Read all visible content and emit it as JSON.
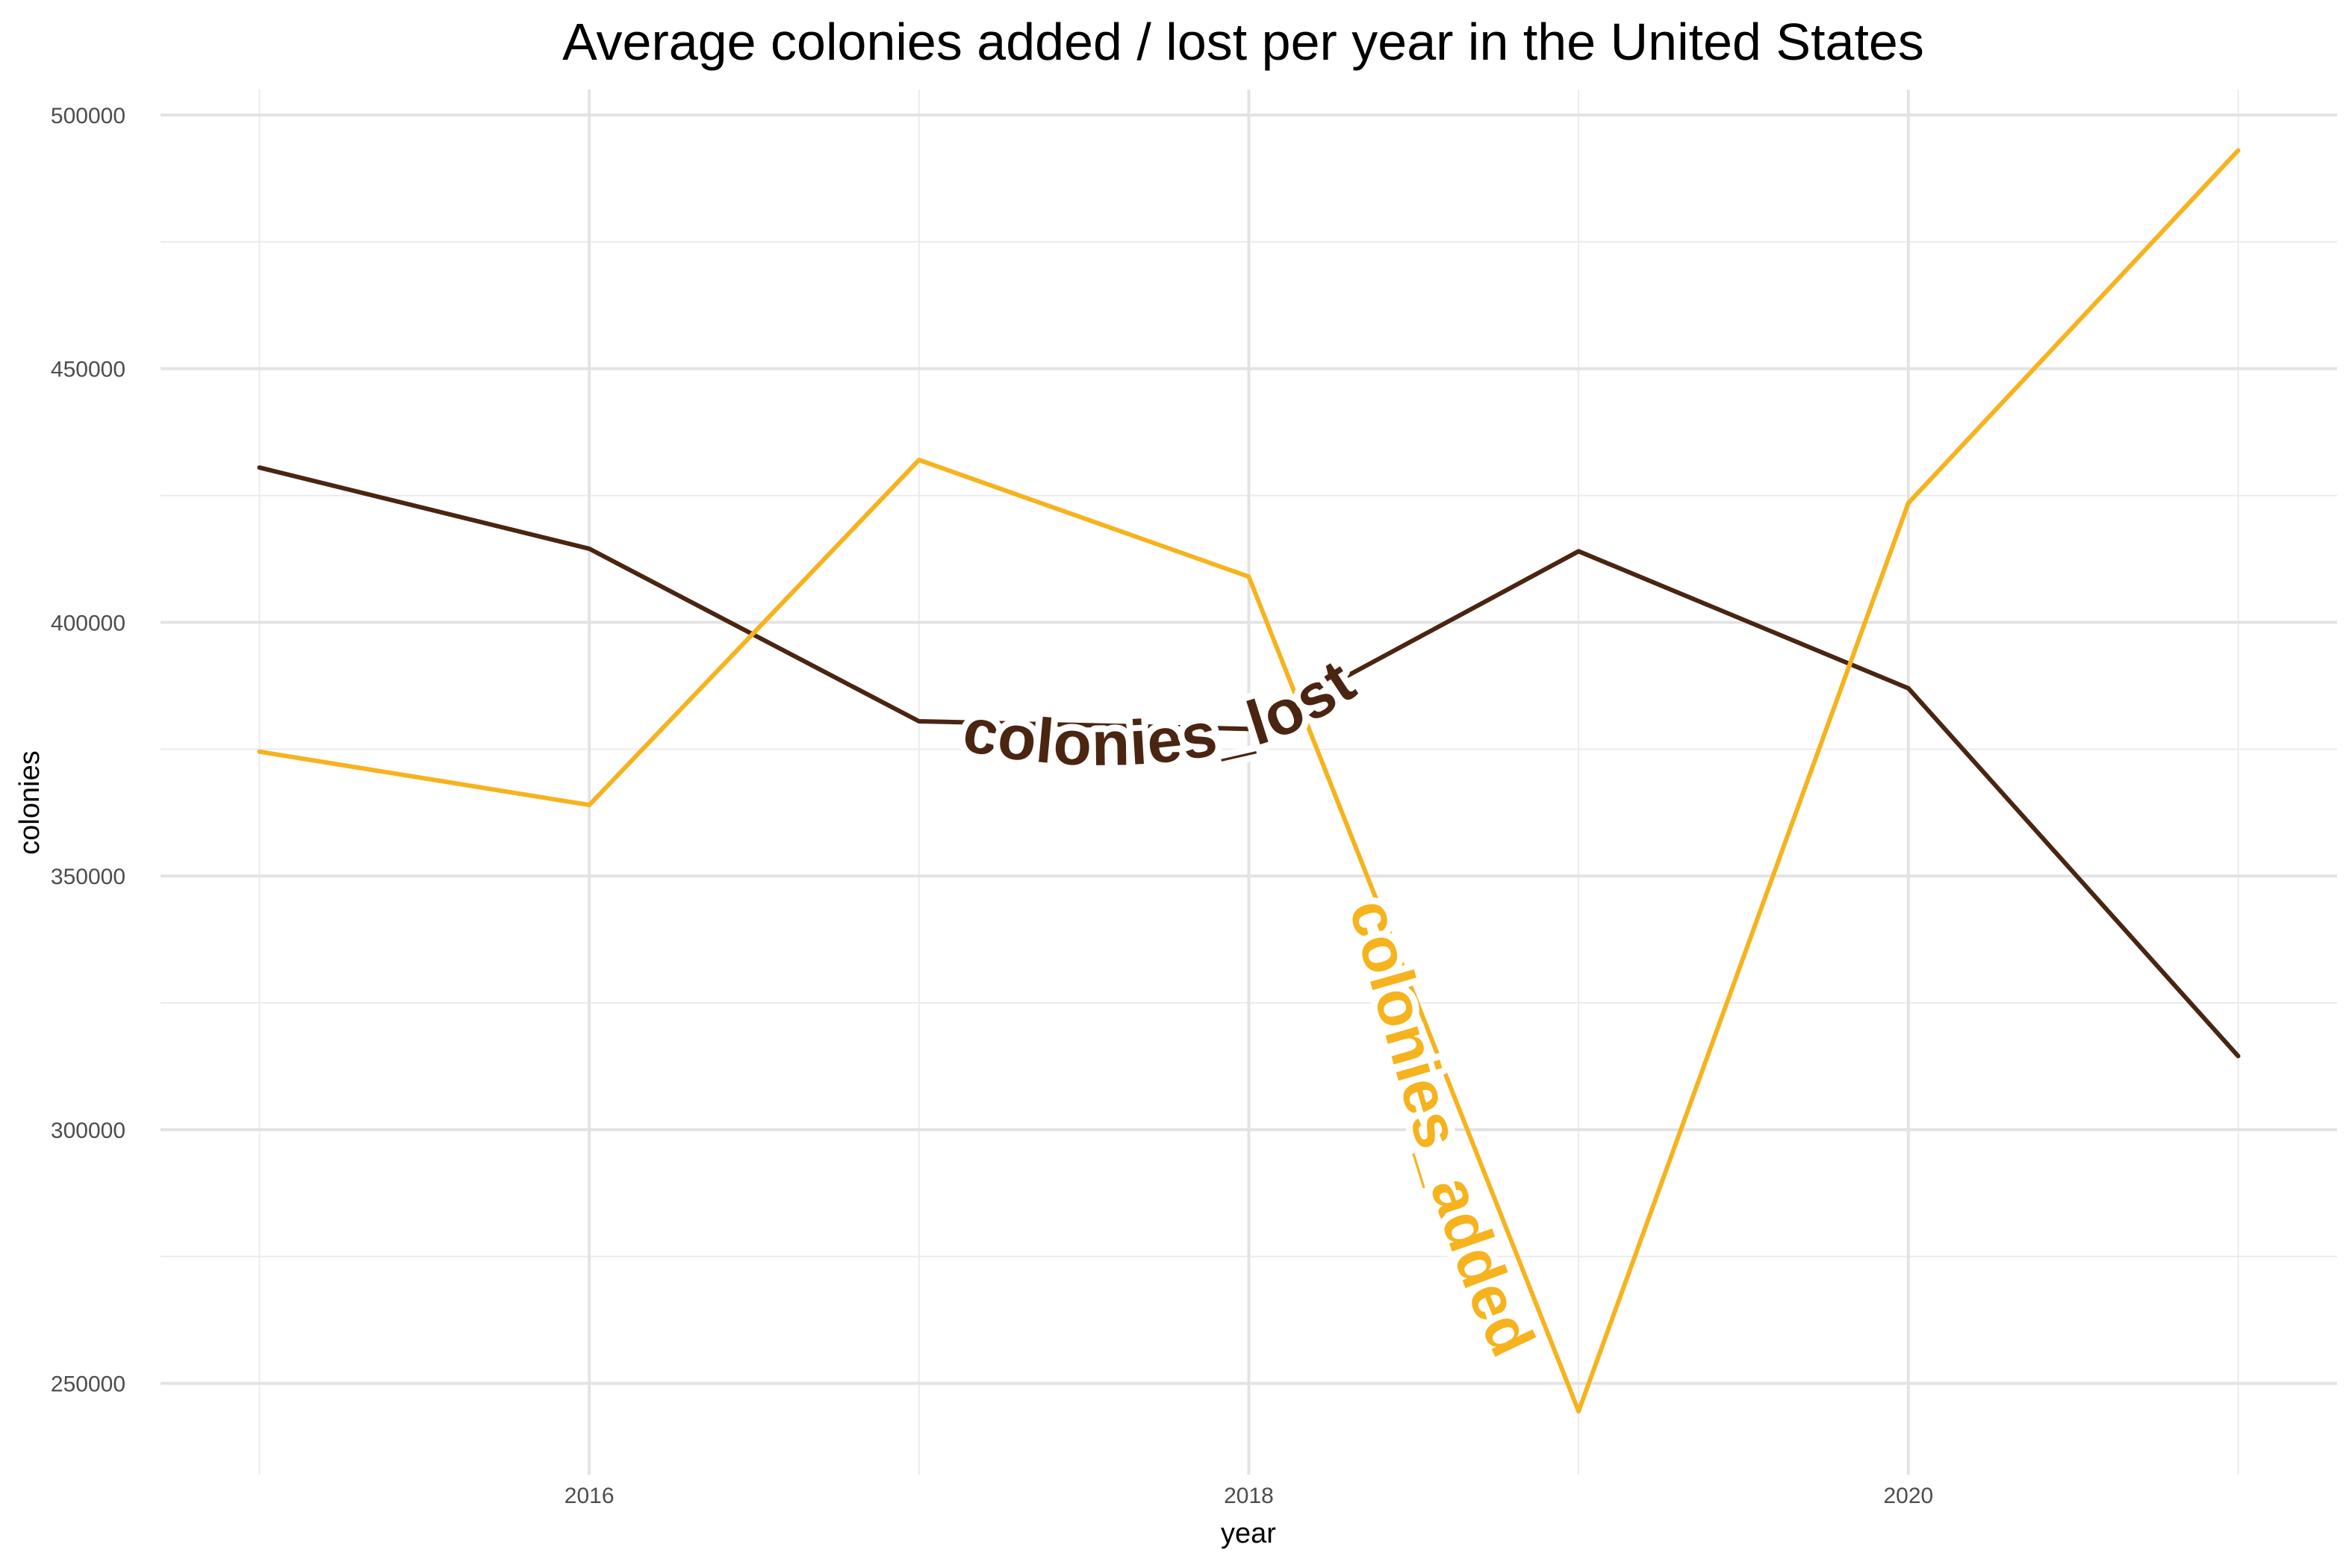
{
  "chart_data": {
    "type": "line",
    "title": "Average colonies added / lost per year in the United States",
    "xlabel": "year",
    "ylabel": "colonies",
    "x": [
      2015,
      2016,
      2017,
      2018,
      2019,
      2020,
      2021
    ],
    "xlim": [
      2014.7,
      2021.3
    ],
    "ylim": [
      232000,
      505000
    ],
    "x_ticks": [
      2016,
      2018,
      2020
    ],
    "y_ticks": [
      250000,
      300000,
      350000,
      400000,
      450000,
      500000
    ],
    "x_tick_labels": [
      "2016",
      "2018",
      "2020"
    ],
    "y_tick_labels": [
      "250000",
      "300000",
      "350000",
      "400000",
      "450000",
      "500000"
    ],
    "grid": true,
    "legend": "none",
    "series": [
      {
        "name": "colonies_lost",
        "color": "#4a2511",
        "values": [
          430500,
          414500,
          380500,
          379000,
          414000,
          387000,
          314500
        ]
      },
      {
        "name": "colonies_added",
        "color": "#f6b31e",
        "values": [
          374500,
          364000,
          432000,
          409000,
          244500,
          423500,
          493000
        ]
      }
    ]
  }
}
